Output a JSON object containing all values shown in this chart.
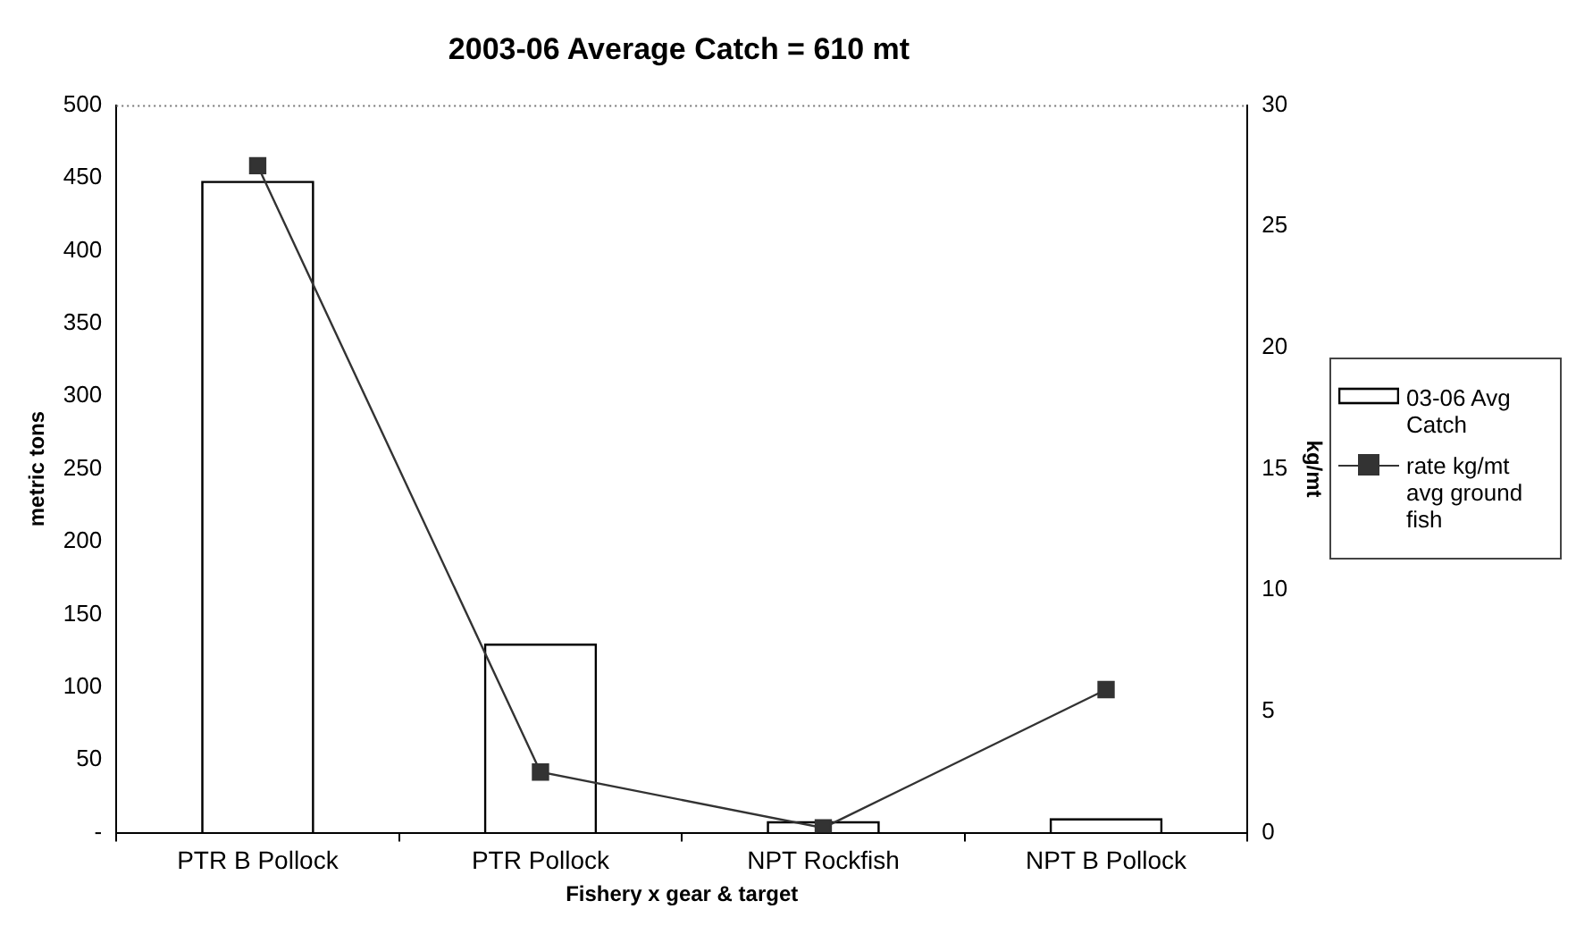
{
  "chart_data": {
    "type": "bar",
    "title": "2003-06 Average Catch = 610 mt",
    "xlabel": "Fishery x gear & target",
    "ylabel": "metric tons",
    "y2label": "kg/mt",
    "categories": [
      "PTR B Pollock",
      "PTR Pollock",
      "NPT Rockfish",
      "NPT B Pollock"
    ],
    "series": [
      {
        "name": "03-06 Avg Catch",
        "color": "#000000",
        "values": [
          448,
          130,
          8,
          10
        ]
      },
      {
        "name": "rate kg/mt avg ground fish",
        "type": "line",
        "axis": "y2",
        "color": "#333333",
        "marker": "square",
        "values": [
          27.5,
          2.5,
          0.2,
          5.9
        ]
      }
    ],
    "ylim": [
      0,
      500
    ],
    "yticks": [
      {
        "value": 0,
        "label": "-"
      },
      50,
      100,
      150,
      200,
      250,
      300,
      350,
      400,
      450,
      500
    ],
    "y2lim": [
      0,
      30
    ],
    "y2ticks": [
      0,
      5,
      10,
      15,
      20,
      25,
      30
    ],
    "legend": "right"
  }
}
